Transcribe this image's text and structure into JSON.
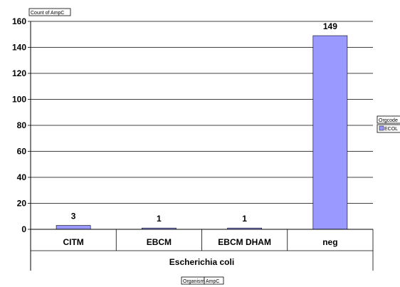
{
  "chart_data": {
    "type": "bar",
    "title": "",
    "ylabel_button": "Count of AmpC",
    "categories": [
      "CITM",
      "EBCM",
      "EBCM DHAM",
      "neg"
    ],
    "group_label": "Escherichia coli",
    "series": [
      {
        "name": "ECOL",
        "values": [
          3,
          1,
          1,
          149
        ],
        "color": "#9999ff"
      }
    ],
    "data_labels": [
      "3",
      "1",
      "1",
      "149"
    ],
    "ylim": [
      0,
      160
    ],
    "yticks": [
      "0",
      "20",
      "40",
      "60",
      "80",
      "100",
      "120",
      "140",
      "160"
    ],
    "grid": true,
    "legend": {
      "title": "Orgcode",
      "placement": "right"
    },
    "row_field_buttons": [
      "Organism",
      "AmpC"
    ]
  }
}
